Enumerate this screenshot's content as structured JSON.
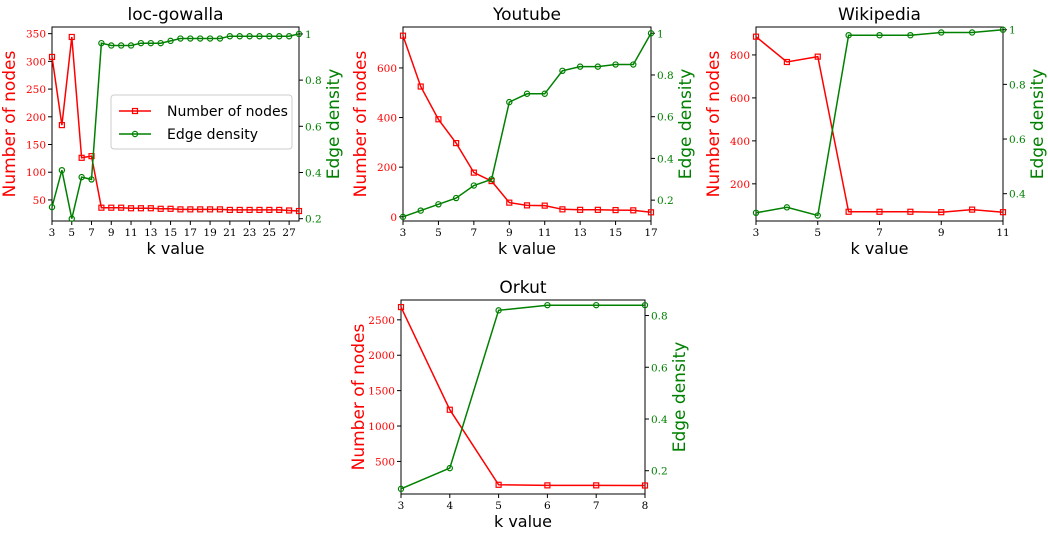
{
  "colors": {
    "nodes": "#ff0000",
    "density": "#008000",
    "axis": "#000000"
  },
  "chart_data": [
    {
      "type": "line",
      "title": "loc-gowalla",
      "xlabel": "k value",
      "ylabel_left": "Number of nodes",
      "ylabel_right": "Edge density",
      "x": [
        3,
        4,
        5,
        6,
        7,
        8,
        9,
        10,
        11,
        12,
        13,
        14,
        15,
        16,
        17,
        18,
        19,
        20,
        21,
        22,
        23,
        24,
        25,
        26,
        27,
        28
      ],
      "xlim": [
        3,
        28
      ],
      "xticks": [
        3,
        5,
        7,
        9,
        11,
        13,
        15,
        17,
        19,
        21,
        23,
        25,
        27
      ],
      "ylim_left": [
        12,
        362
      ],
      "yticks_left": [
        50,
        100,
        150,
        200,
        250,
        300,
        350
      ],
      "ylim_right": [
        0.19,
        1.03
      ],
      "yticks_right": [
        0.2,
        0.4,
        0.6,
        0.8,
        1.0
      ],
      "series": [
        {
          "name": "Number of nodes",
          "axis": "left",
          "marker": "square",
          "values": [
            308,
            185,
            344,
            126,
            129,
            36,
            36,
            36,
            35,
            35,
            35,
            34,
            34,
            33,
            33,
            33,
            33,
            33,
            32,
            32,
            32,
            32,
            32,
            32,
            31,
            30
          ]
        },
        {
          "name": "Edge density",
          "axis": "right",
          "marker": "circle",
          "values": [
            0.25,
            0.41,
            0.2,
            0.38,
            0.37,
            0.96,
            0.95,
            0.95,
            0.95,
            0.96,
            0.96,
            0.96,
            0.97,
            0.98,
            0.98,
            0.98,
            0.98,
            0.98,
            0.99,
            0.99,
            0.99,
            0.99,
            0.99,
            0.99,
            0.99,
            1.0
          ]
        }
      ],
      "legend": {
        "position": "center-right",
        "entries": [
          "Number of nodes",
          "Edge density"
        ]
      }
    },
    {
      "type": "line",
      "title": "Youtube",
      "xlabel": "k value",
      "ylabel_left": "Number of nodes",
      "ylabel_right": "Edge density",
      "x": [
        3,
        4,
        5,
        6,
        7,
        8,
        9,
        10,
        11,
        12,
        13,
        14,
        15,
        16,
        17
      ],
      "xlim": [
        3,
        17
      ],
      "xticks": [
        3,
        5,
        7,
        9,
        11,
        13,
        15,
        17
      ],
      "ylim_left": [
        -17,
        765
      ],
      "yticks_left": [
        0,
        200,
        400,
        600
      ],
      "ylim_right": [
        0.1,
        1.03
      ],
      "yticks_right": [
        0.2,
        0.4,
        0.6,
        0.8,
        1.0
      ],
      "series": [
        {
          "name": "Number of nodes",
          "axis": "left",
          "marker": "square",
          "values": [
            730,
            525,
            393,
            297,
            178,
            144,
            57,
            46,
            45,
            30,
            28,
            28,
            27,
            26,
            18
          ]
        },
        {
          "name": "Edge density",
          "axis": "right",
          "marker": "circle",
          "values": [
            0.12,
            0.15,
            0.18,
            0.21,
            0.27,
            0.3,
            0.67,
            0.71,
            0.71,
            0.82,
            0.84,
            0.84,
            0.85,
            0.85,
            1.0
          ]
        }
      ]
    },
    {
      "type": "line",
      "title": "Wikipedia",
      "xlabel": "k value",
      "ylabel_left": "Number of nodes",
      "ylabel_right": "Edge density",
      "x": [
        3,
        4,
        5,
        6,
        7,
        8,
        9,
        10,
        11
      ],
      "xlim": [
        3,
        11
      ],
      "xticks": [
        3,
        5,
        7,
        9,
        11
      ],
      "ylim_left": [
        27,
        930
      ],
      "yticks_left": [
        200,
        400,
        600,
        800
      ],
      "ylim_right": [
        0.3,
        1.01
      ],
      "yticks_right": [
        0.4,
        0.6,
        0.8,
        1.0
      ],
      "series": [
        {
          "name": "Number of nodes",
          "axis": "left",
          "marker": "square",
          "values": [
            885,
            767,
            792,
            70,
            70,
            70,
            68,
            80,
            68
          ]
        },
        {
          "name": "Edge density",
          "axis": "right",
          "marker": "circle",
          "values": [
            0.33,
            0.35,
            0.32,
            0.98,
            0.98,
            0.98,
            0.99,
            0.99,
            1.0
          ]
        }
      ]
    },
    {
      "type": "line",
      "title": "Orkut",
      "xlabel": "k value",
      "ylabel_left": "Number of nodes",
      "ylabel_right": "Edge density",
      "x": [
        3,
        4,
        5,
        6,
        7,
        8
      ],
      "xlim": [
        3,
        8
      ],
      "xticks": [
        3,
        4,
        5,
        6,
        7,
        8
      ],
      "ylim_left": [
        40,
        2780
      ],
      "yticks_left": [
        500,
        1000,
        1500,
        2000,
        2500
      ],
      "ylim_right": [
        0.11,
        0.86
      ],
      "yticks_right": [
        0.2,
        0.4,
        0.6,
        0.8
      ],
      "series": [
        {
          "name": "Number of nodes",
          "axis": "left",
          "marker": "square",
          "values": [
            2680,
            1230,
            170,
            162,
            162,
            160
          ]
        },
        {
          "name": "Edge density",
          "axis": "right",
          "marker": "circle",
          "values": [
            0.13,
            0.21,
            0.82,
            0.84,
            0.84,
            0.84
          ]
        }
      ]
    }
  ]
}
